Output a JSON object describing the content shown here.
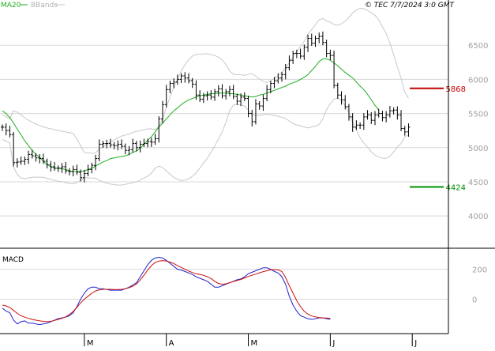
{
  "legend": {
    "ma_label": "MA20",
    "bb_label": "BBands"
  },
  "copyright": "© TEC 7/7/2024 3:0 GMT",
  "macd_label": "MACD",
  "colors": {
    "price": "#000000",
    "ma": "#1fae1f",
    "bbands": "#c8c8c8",
    "grid": "#d8d8d8",
    "tick": "#a0a0a0",
    "macd": "#2222cc",
    "signal": "#cc1111",
    "resistance": "#c00000",
    "support": "#009000"
  },
  "chart_data": [
    {
      "type": "ohlc",
      "panel": "price",
      "yticks": [
        4000,
        4500,
        5000,
        5500,
        6000,
        6500
      ],
      "ylim": [
        3550,
        7000
      ],
      "xticks": [
        "M",
        "A",
        "M",
        "J",
        "J"
      ],
      "tick_index": [
        22,
        44,
        66,
        88,
        110
      ],
      "levels": [
        {
          "label": "5868",
          "value": 5868,
          "role": "resistance"
        },
        {
          "label": "4424",
          "value": 4424,
          "role": "support"
        }
      ],
      "close": [
        5300,
        5250,
        5190,
        4780,
        4790,
        4800,
        4830,
        4900,
        4880,
        4850,
        4840,
        4800,
        4750,
        4720,
        4700,
        4700,
        4720,
        4660,
        4650,
        4680,
        4640,
        4560,
        4620,
        4680,
        4740,
        4840,
        5050,
        5060,
        5060,
        5040,
        5030,
        5050,
        5020,
        4960,
        4970,
        5060,
        5000,
        5050,
        5060,
        5090,
        5080,
        5130,
        5420,
        5630,
        5850,
        5940,
        5960,
        6000,
        6050,
        6020,
        5980,
        5930,
        5770,
        5710,
        5760,
        5770,
        5740,
        5820,
        5860,
        5760,
        5820,
        5850,
        5750,
        5680,
        5740,
        5720,
        5500,
        5380,
        5640,
        5610,
        5720,
        5850,
        5940,
        5980,
        6020,
        6070,
        6170,
        6280,
        6380,
        6380,
        6340,
        6470,
        6600,
        6530,
        6600,
        6630,
        6540,
        6380,
        6350,
        5910,
        5770,
        5700,
        5600,
        5450,
        5300,
        5330,
        5330,
        5450,
        5480,
        5400,
        5480,
        5500,
        5440,
        5480,
        5540,
        5550,
        5480,
        5280,
        5230,
        5300
      ],
      "ma20": [
        5540,
        5500,
        5440,
        5360,
        5270,
        5190,
        5100,
        5030,
        4960,
        4900,
        4860,
        4800,
        4750,
        4720,
        4700,
        4700,
        4690,
        4680,
        4660,
        4650,
        4650,
        4650,
        4660,
        4680,
        4700,
        4730,
        4760,
        4790,
        4810,
        4840,
        4850,
        4860,
        4870,
        4880,
        4900,
        4930,
        4950,
        4990,
        5050,
        5110,
        5160,
        5230,
        5300,
        5360,
        5420,
        5480,
        5540,
        5580,
        5630,
        5670,
        5700,
        5720,
        5740,
        5760,
        5770,
        5780,
        5790,
        5790,
        5800,
        5800,
        5800,
        5790,
        5790,
        5780,
        5770,
        5760,
        5750,
        5740,
        5750,
        5770,
        5780,
        5800,
        5820,
        5840,
        5860,
        5880,
        5900,
        5930,
        5950,
        5970,
        6000,
        6030,
        6070,
        6130,
        6190,
        6260,
        6300,
        6300,
        6280,
        6240,
        6200,
        6150,
        6100,
        6060,
        6020,
        5960,
        5900,
        5850,
        5780,
        5700,
        5620,
        5550
      ]
    },
    {
      "type": "line",
      "panel": "macd",
      "yticks": [
        0,
        200
      ],
      "ylim": [
        -230,
        330
      ],
      "series": [
        {
          "role": "macd",
          "values": [
            -60,
            -80,
            -90,
            -140,
            -165,
            -150,
            -145,
            -160,
            -160,
            -165,
            -170,
            -165,
            -160,
            -150,
            -140,
            -130,
            -125,
            -120,
            -110,
            -90,
            -50,
            0,
            40,
            70,
            80,
            80,
            70,
            70,
            65,
            60,
            60,
            60,
            60,
            70,
            80,
            95,
            110,
            150,
            190,
            230,
            260,
            275,
            280,
            275,
            260,
            240,
            220,
            200,
            195,
            185,
            175,
            165,
            150,
            140,
            130,
            120,
            100,
            80,
            80,
            90,
            100,
            110,
            120,
            130,
            135,
            150,
            170,
            180,
            190,
            200,
            210,
            210,
            200,
            185,
            175,
            150,
            100,
            20,
            -40,
            -80,
            -110,
            -120,
            -130,
            -135,
            -130,
            -125,
            -125,
            -130,
            -135
          ]
        },
        {
          "role": "signal",
          "values": [
            -40,
            -45,
            -55,
            -75,
            -95,
            -110,
            -120,
            -128,
            -135,
            -140,
            -145,
            -148,
            -150,
            -148,
            -142,
            -135,
            -128,
            -118,
            -102,
            -82,
            -55,
            -25,
            0,
            20,
            40,
            55,
            62,
            66,
            66,
            66,
            65,
            65,
            66,
            70,
            77,
            87,
            102,
            128,
            160,
            195,
            225,
            245,
            255,
            258,
            255,
            248,
            238,
            225,
            212,
            200,
            188,
            178,
            170,
            165,
            160,
            150,
            138,
            120,
            105,
            100,
            103,
            110,
            118,
            125,
            132,
            142,
            152,
            160,
            168,
            176,
            184,
            190,
            196,
            198,
            196,
            185,
            145,
            90,
            40,
            -10,
            -50,
            -80,
            -100,
            -112,
            -118,
            -122,
            -125,
            -126,
            -128
          ]
        }
      ]
    }
  ]
}
